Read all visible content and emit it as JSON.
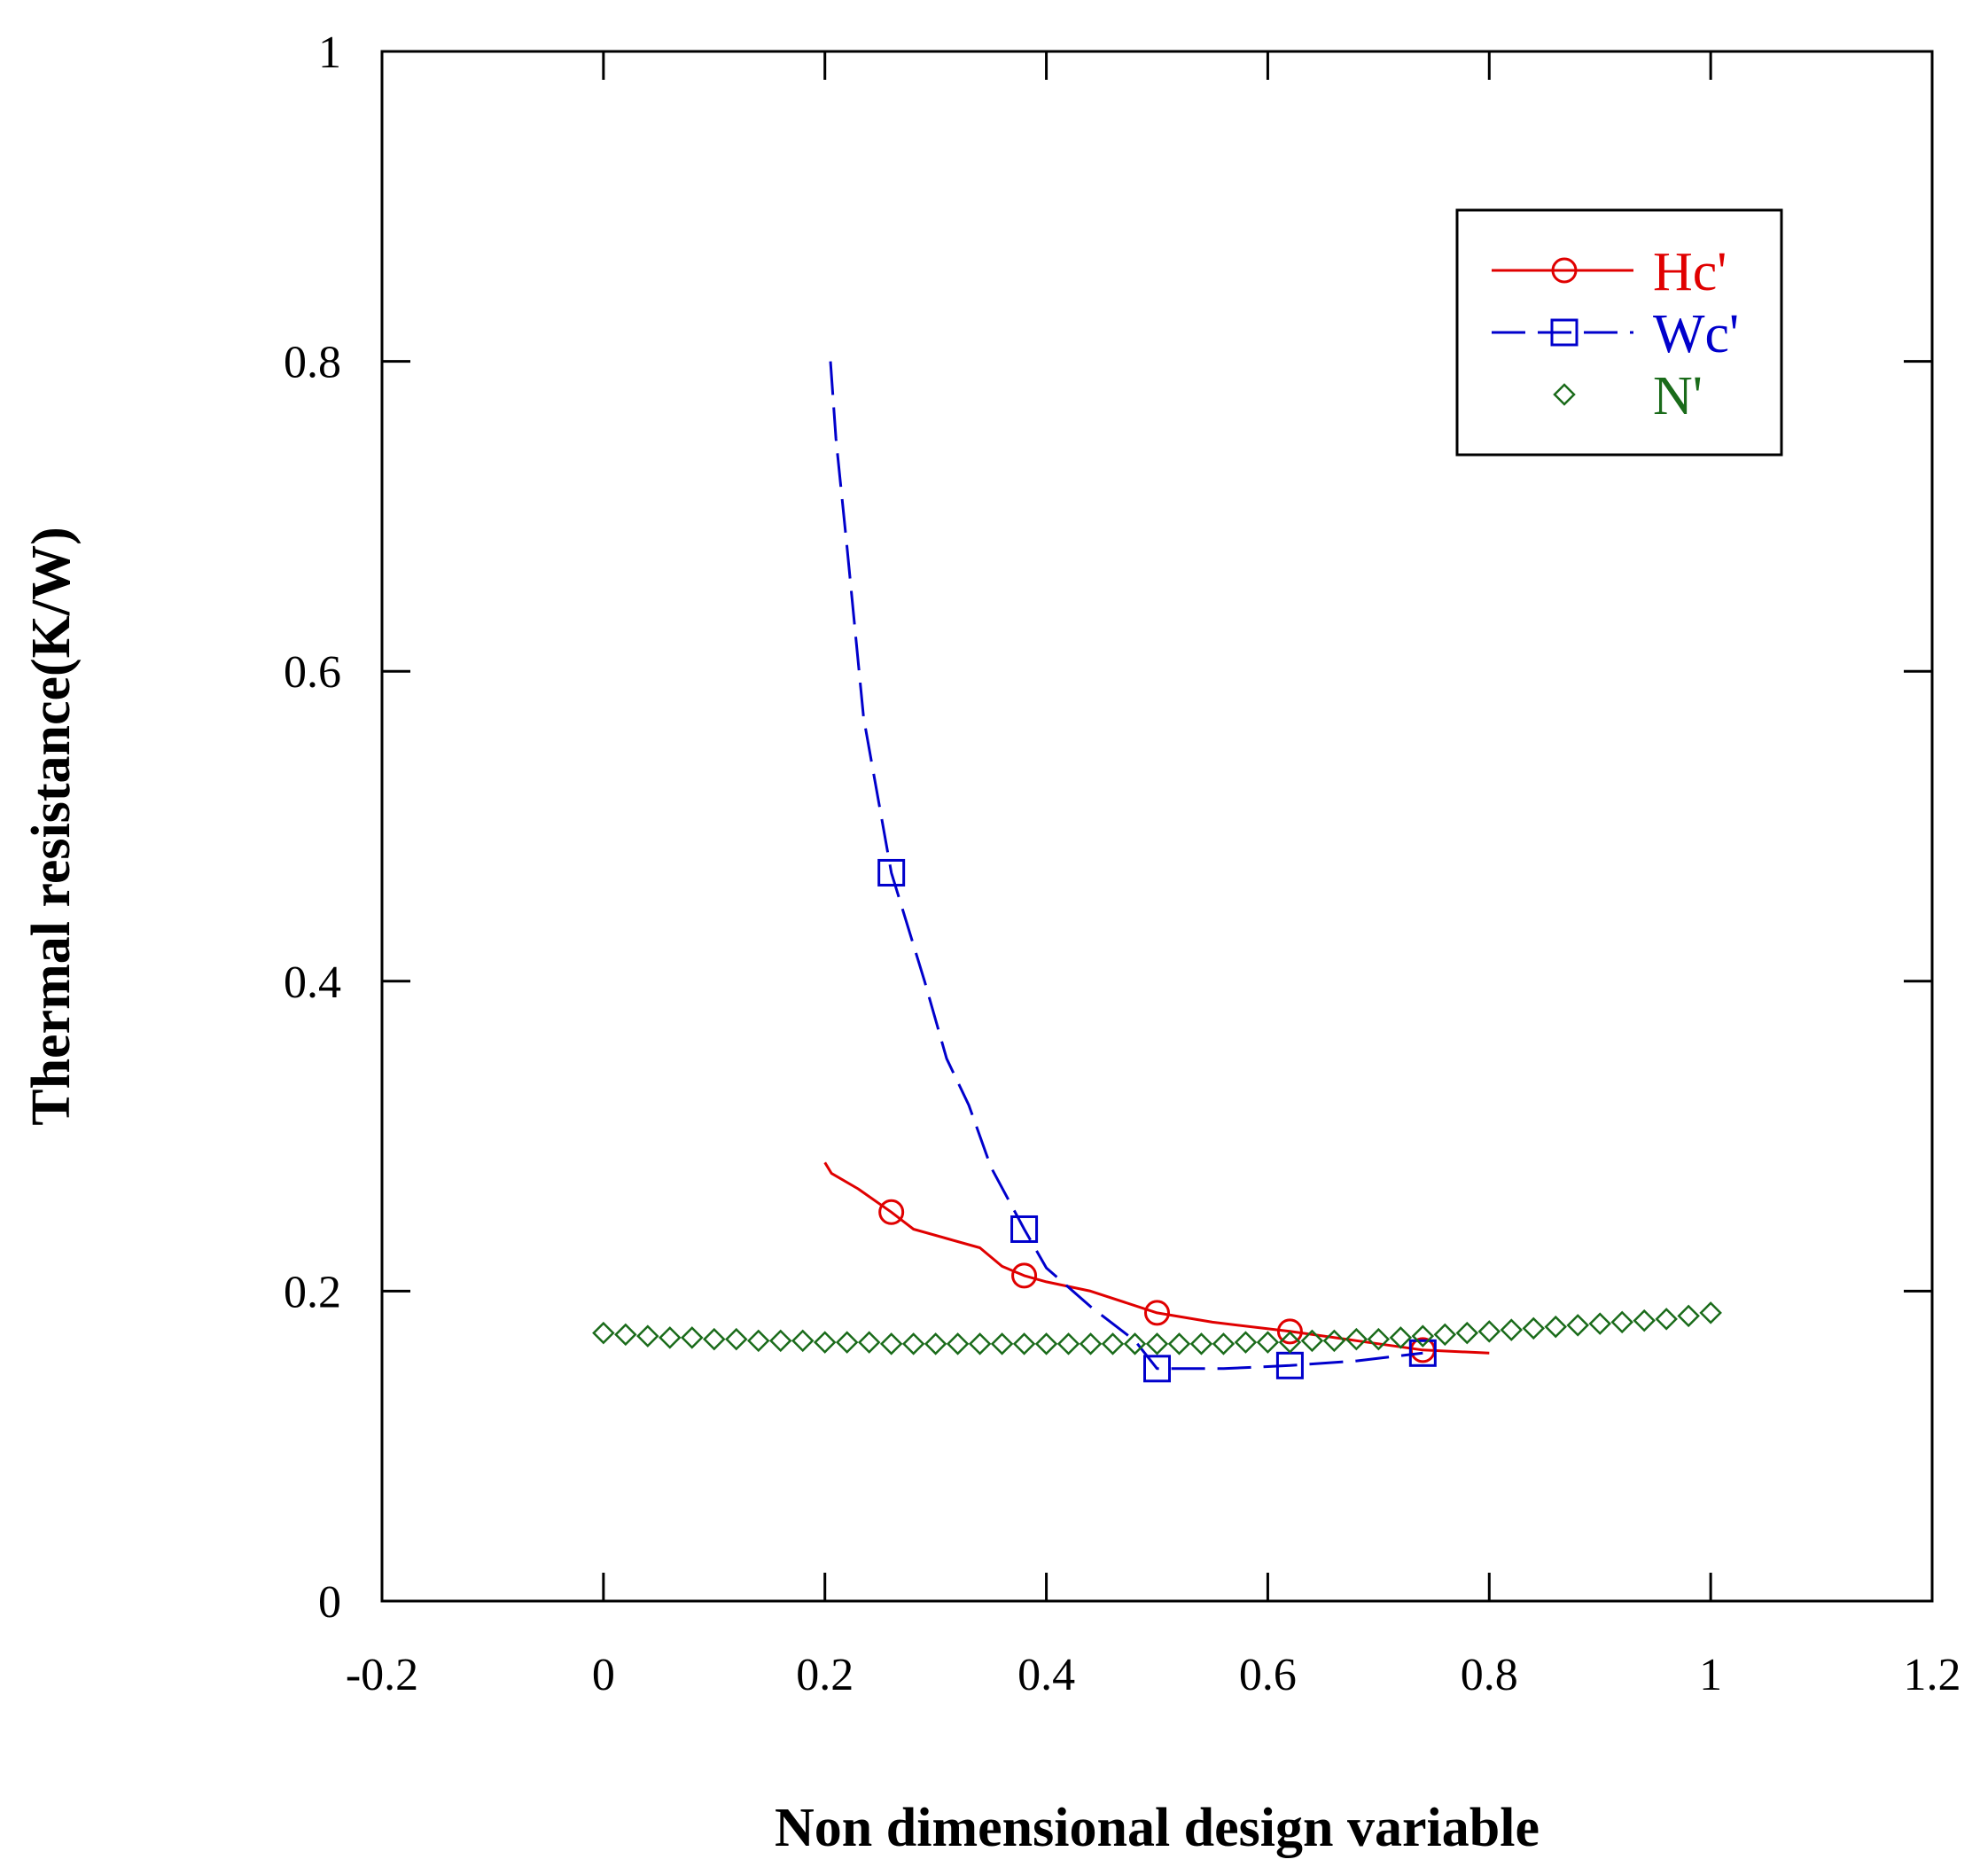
{
  "chart_data": {
    "type": "line",
    "title": "",
    "xlabel": "Non dimensional design variable",
    "ylabel": "Thermal resistance(K/W)",
    "xlim": [
      -0.2,
      1.2
    ],
    "ylim": [
      0,
      1
    ],
    "xticks": [
      -0.2,
      0,
      0.2,
      0.4,
      0.6,
      0.8,
      1,
      1.2
    ],
    "xtick_labels": [
      "-0.2",
      "0",
      "0.2",
      "0.4",
      "0.6",
      "0.8",
      "1",
      "1.2"
    ],
    "yticks": [
      0,
      0.2,
      0.4,
      0.6,
      0.8,
      1
    ],
    "ytick_labels": [
      "0",
      "0.2",
      "0.4",
      "0.6",
      "0.8",
      "1"
    ],
    "grid": false,
    "legend_position": "top-right",
    "series": [
      {
        "name": "Hc'",
        "color": "#e00000",
        "line": "solid",
        "marker": "circle",
        "curve": [
          [
            0.2,
            0.283
          ],
          [
            0.206,
            0.276
          ],
          [
            0.23,
            0.266
          ],
          [
            0.26,
            0.251
          ],
          [
            0.28,
            0.24
          ],
          [
            0.31,
            0.234
          ],
          [
            0.34,
            0.228
          ],
          [
            0.36,
            0.216
          ],
          [
            0.38,
            0.21
          ],
          [
            0.4,
            0.206
          ],
          [
            0.44,
            0.2
          ],
          [
            0.5,
            0.186
          ],
          [
            0.55,
            0.18
          ],
          [
            0.62,
            0.174
          ],
          [
            0.68,
            0.168
          ],
          [
            0.74,
            0.162
          ],
          [
            0.8,
            0.16
          ]
        ],
        "markers": [
          [
            0.26,
            0.251
          ],
          [
            0.38,
            0.21
          ],
          [
            0.5,
            0.186
          ],
          [
            0.62,
            0.174
          ],
          [
            0.74,
            0.162
          ]
        ]
      },
      {
        "name": "Wc'",
        "color": "#0000cc",
        "line": "dashed",
        "marker": "square",
        "curve": [
          [
            0.205,
            0.8
          ],
          [
            0.21,
            0.75
          ],
          [
            0.22,
            0.68
          ],
          [
            0.235,
            0.57
          ],
          [
            0.25,
            0.51
          ],
          [
            0.26,
            0.47
          ],
          [
            0.29,
            0.4
          ],
          [
            0.31,
            0.35
          ],
          [
            0.33,
            0.32
          ],
          [
            0.35,
            0.28
          ],
          [
            0.38,
            0.24
          ],
          [
            0.4,
            0.215
          ],
          [
            0.44,
            0.19
          ],
          [
            0.48,
            0.168
          ],
          [
            0.5,
            0.15
          ],
          [
            0.56,
            0.15
          ],
          [
            0.62,
            0.152
          ],
          [
            0.68,
            0.155
          ],
          [
            0.74,
            0.16
          ]
        ],
        "markers": [
          [
            0.26,
            0.47
          ],
          [
            0.38,
            0.24
          ],
          [
            0.5,
            0.15
          ],
          [
            0.62,
            0.152
          ],
          [
            0.74,
            0.16
          ]
        ]
      },
      {
        "name": "N'",
        "color": "#1a6b1a",
        "line": "none",
        "marker": "diamond",
        "x": [
          0,
          0.02,
          0.04,
          0.06,
          0.08,
          0.1,
          0.12,
          0.14,
          0.16,
          0.18,
          0.2,
          0.22,
          0.24,
          0.26,
          0.28,
          0.3,
          0.32,
          0.34,
          0.36,
          0.38,
          0.4,
          0.42,
          0.44,
          0.46,
          0.48,
          0.5,
          0.52,
          0.54,
          0.56,
          0.58,
          0.6,
          0.62,
          0.64,
          0.66,
          0.68,
          0.7,
          0.72,
          0.74,
          0.76,
          0.78,
          0.8,
          0.82,
          0.84,
          0.86,
          0.88,
          0.9,
          0.92,
          0.94,
          0.96,
          0.98,
          1.0
        ],
        "values": [
          0.173,
          0.172,
          0.171,
          0.17,
          0.17,
          0.169,
          0.169,
          0.168,
          0.168,
          0.168,
          0.167,
          0.167,
          0.167,
          0.166,
          0.166,
          0.166,
          0.166,
          0.166,
          0.166,
          0.166,
          0.166,
          0.166,
          0.166,
          0.166,
          0.166,
          0.166,
          0.166,
          0.166,
          0.166,
          0.167,
          0.167,
          0.167,
          0.168,
          0.168,
          0.169,
          0.169,
          0.17,
          0.171,
          0.172,
          0.173,
          0.174,
          0.175,
          0.176,
          0.177,
          0.178,
          0.179,
          0.18,
          0.181,
          0.182,
          0.184,
          0.186
        ]
      }
    ]
  }
}
